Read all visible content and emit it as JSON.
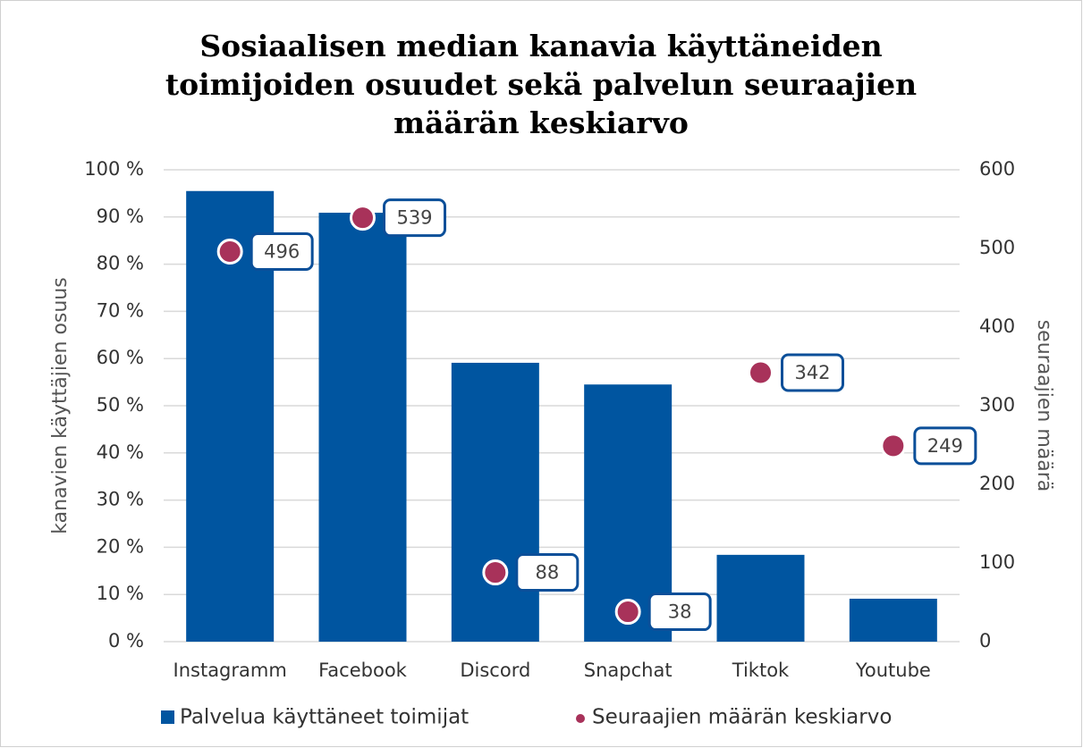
{
  "chart_data": {
    "type": "bar",
    "title": "Sosiaalisen median kanavia käyttäneiden toimijoiden osuudet sekä palvelun seuraajien määrän keskiarvo",
    "categories": [
      "Instagramm",
      "Facebook",
      "Discord",
      "Snapchat",
      "Tiktok",
      "Youtube"
    ],
    "series": [
      {
        "name": "Palvelua käyttäneet toimijat",
        "color": "#0055a0",
        "type": "bar",
        "values": [
          95.5,
          90.9,
          59.1,
          54.5,
          18.4,
          9.1
        ]
      },
      {
        "name": "Seuraajien määrän keskiarvo",
        "color": "#a8325a",
        "type": "scatter",
        "axis": "y2",
        "values": [
          496,
          539,
          88,
          38,
          342,
          249
        ]
      }
    ],
    "ylabel": "kanavien käyttäjien osuus",
    "y2label": "seuraajien määrä",
    "ylim": [
      0,
      100
    ],
    "yticks": [
      {
        "value": 0,
        "label": "0 %"
      },
      {
        "value": 10,
        "label": "10 %"
      },
      {
        "value": 20,
        "label": "20 %"
      },
      {
        "value": 30,
        "label": "30 %"
      },
      {
        "value": 40,
        "label": "40 %"
      },
      {
        "value": 50,
        "label": "50 %"
      },
      {
        "value": 60,
        "label": "60 %"
      },
      {
        "value": 70,
        "label": "70 %"
      },
      {
        "value": 80,
        "label": "80 %"
      },
      {
        "value": 90,
        "label": "90 %"
      },
      {
        "value": 100,
        "label": "100 %"
      }
    ],
    "y2lim": [
      0,
      600
    ],
    "y2ticks": [
      0,
      100,
      200,
      300,
      400,
      500,
      600
    ],
    "grid": true,
    "legend": "bottom"
  }
}
